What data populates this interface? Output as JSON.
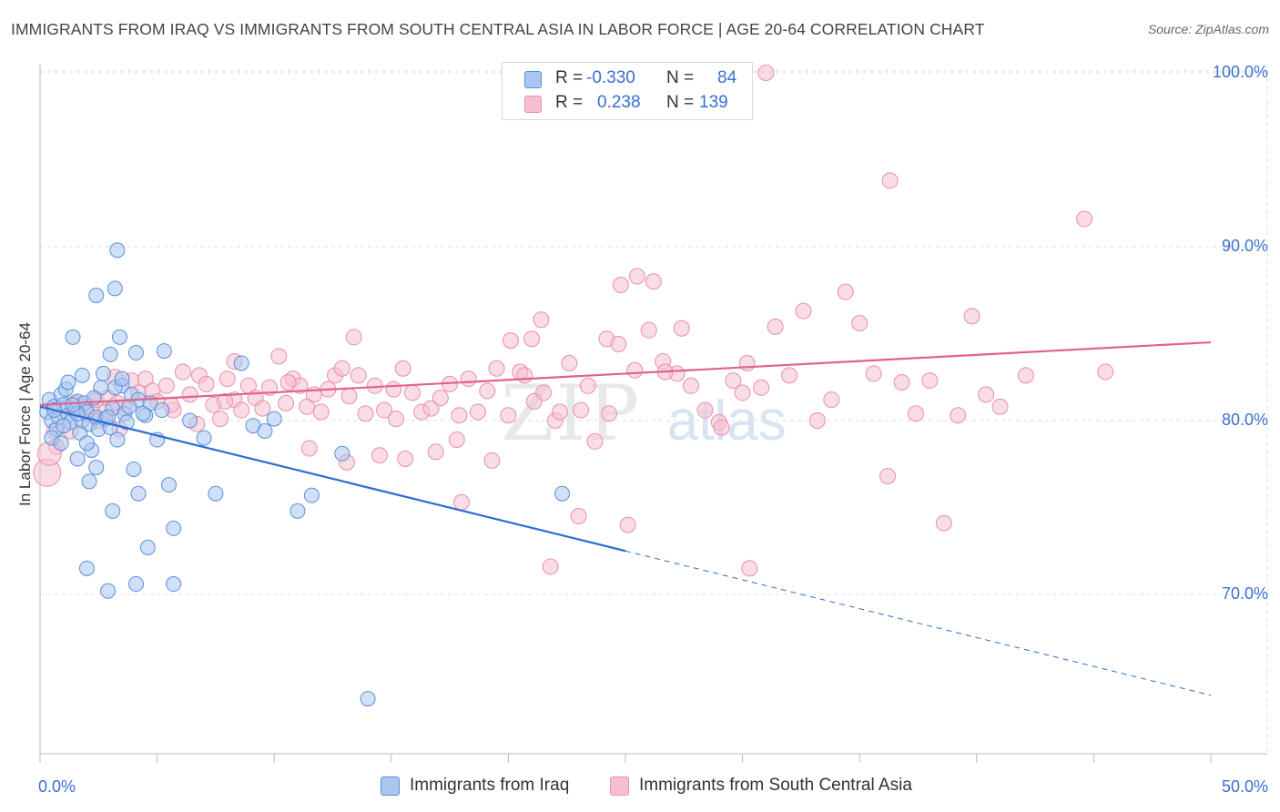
{
  "header": {
    "title": "IMMIGRANTS FROM IRAQ VS IMMIGRANTS FROM SOUTH CENTRAL ASIA IN LABOR FORCE | AGE 20-64 CORRELATION CHART",
    "source": "Source: ZipAtlas.com"
  },
  "watermark": {
    "zip": "ZIP",
    "atlas": "atlas"
  },
  "legend": {
    "r_label": "R =",
    "n_label": "N =",
    "rows": [
      {
        "r": "-0.330",
        "n": "84"
      },
      {
        "r": "0.238",
        "n": "139"
      }
    ]
  },
  "colors": {
    "blue_fill": "#a9c6ef",
    "blue_stroke": "#5b8fda",
    "blue_line": "#2c6fd0",
    "pink_fill": "#f6bfd0",
    "pink_stroke": "#e98fab",
    "pink_line": "#e0628a",
    "tick_label": "#3a6fd0",
    "grid": "#dddddd"
  },
  "chart_data": {
    "type": "scatter",
    "title": "IMMIGRANTS FROM IRAQ VS IMMIGRANTS FROM SOUTH CENTRAL ASIA IN LABOR FORCE | AGE 20-64 CORRELATION CHART",
    "xlabel": "",
    "ylabel": "In Labor Force | Age 20-64",
    "xlim": [
      0,
      50
    ],
    "ylim": [
      61,
      102
    ],
    "x_tick_labels": [
      "0.0%",
      "50.0%"
    ],
    "y_ticks": [
      70,
      80,
      90,
      100
    ],
    "y_tick_labels": [
      "70.0%",
      "80.0%",
      "90.0%",
      "100.0%"
    ],
    "grid": true,
    "legend_position": "top-center",
    "series": [
      {
        "name": "Immigrants from Iraq",
        "r": -0.33,
        "n": 84,
        "color": "#a9c6ef",
        "trend": {
          "x": [
            0,
            25
          ],
          "y": [
            80.8,
            72.5
          ],
          "dashed_to": [
            50,
            64.2
          ]
        },
        "points": [
          [
            0.3,
            80.5
          ],
          [
            0.4,
            81.2
          ],
          [
            0.5,
            80.0
          ],
          [
            0.6,
            80.8
          ],
          [
            0.7,
            79.5
          ],
          [
            0.8,
            80.2
          ],
          [
            0.9,
            81.5
          ],
          [
            1.0,
            80.9
          ],
          [
            1.1,
            81.8
          ],
          [
            1.2,
            80.3
          ],
          [
            0.5,
            79.0
          ],
          [
            0.9,
            78.7
          ],
          [
            1.3,
            79.9
          ],
          [
            1.5,
            80.6
          ],
          [
            1.6,
            81.1
          ],
          [
            1.7,
            79.3
          ],
          [
            1.8,
            80.0
          ],
          [
            1.9,
            81.0
          ],
          [
            2.0,
            80.5
          ],
          [
            2.1,
            79.8
          ],
          [
            2.2,
            78.3
          ],
          [
            2.4,
            80.2
          ],
          [
            2.5,
            79.5
          ],
          [
            2.6,
            81.9
          ],
          [
            2.8,
            80.1
          ],
          [
            3.0,
            79.6
          ],
          [
            3.1,
            80.7
          ],
          [
            3.3,
            78.9
          ],
          [
            3.5,
            82.0
          ],
          [
            3.6,
            80.4
          ],
          [
            1.2,
            82.2
          ],
          [
            1.4,
            84.8
          ],
          [
            1.8,
            82.6
          ],
          [
            2.3,
            81.3
          ],
          [
            2.7,
            82.7
          ],
          [
            3.0,
            83.8
          ],
          [
            3.2,
            81.9
          ],
          [
            3.5,
            82.4
          ],
          [
            3.9,
            81.5
          ],
          [
            4.2,
            81.2
          ],
          [
            1.6,
            77.8
          ],
          [
            2.1,
            76.5
          ],
          [
            2.4,
            77.3
          ],
          [
            3.1,
            74.8
          ],
          [
            4.0,
            77.2
          ],
          [
            4.2,
            75.8
          ],
          [
            4.6,
            72.7
          ],
          [
            5.0,
            78.9
          ],
          [
            5.5,
            76.3
          ],
          [
            5.7,
            73.8
          ],
          [
            2.0,
            71.5
          ],
          [
            2.9,
            70.2
          ],
          [
            4.1,
            70.6
          ],
          [
            5.7,
            70.6
          ],
          [
            7.0,
            79.0
          ],
          [
            7.5,
            75.8
          ],
          [
            8.6,
            83.3
          ],
          [
            9.1,
            79.7
          ],
          [
            9.6,
            79.4
          ],
          [
            10.0,
            80.1
          ],
          [
            2.4,
            87.2
          ],
          [
            3.2,
            87.6
          ],
          [
            3.4,
            84.8
          ],
          [
            3.3,
            89.8
          ],
          [
            4.1,
            83.9
          ],
          [
            4.7,
            81.0
          ],
          [
            3.8,
            80.8
          ],
          [
            4.5,
            80.3
          ],
          [
            5.2,
            80.6
          ],
          [
            6.4,
            80.0
          ],
          [
            11.0,
            74.8
          ],
          [
            11.6,
            75.7
          ],
          [
            12.9,
            78.1
          ],
          [
            14.0,
            64.0
          ],
          [
            22.3,
            75.8
          ],
          [
            1.0,
            79.7
          ],
          [
            1.6,
            80.4
          ],
          [
            2.9,
            80.2
          ],
          [
            3.7,
            79.9
          ],
          [
            5.3,
            84.0
          ],
          [
            0.6,
            80.6
          ],
          [
            1.4,
            80.9
          ],
          [
            2.0,
            78.7
          ],
          [
            4.4,
            80.4
          ]
        ]
      },
      {
        "name": "Immigrants from South Central Asia",
        "r": 0.238,
        "n": 139,
        "color": "#f6bfd0",
        "trend": {
          "x": [
            0,
            50
          ],
          "y": [
            80.9,
            84.5
          ]
        },
        "points": [
          [
            0.3,
            77.0
          ],
          [
            0.6,
            79.4
          ],
          [
            0.7,
            78.5
          ],
          [
            1.1,
            80.6
          ],
          [
            1.5,
            81.0
          ],
          [
            2.0,
            80.4
          ],
          [
            2.2,
            80.8
          ],
          [
            2.4,
            81.2
          ],
          [
            2.5,
            80.0
          ],
          [
            2.9,
            81.3
          ],
          [
            3.2,
            82.5
          ],
          [
            3.4,
            79.5
          ],
          [
            3.6,
            80.7
          ],
          [
            3.9,
            82.3
          ],
          [
            4.2,
            81.6
          ],
          [
            4.5,
            82.4
          ],
          [
            4.8,
            81.7
          ],
          [
            5.0,
            81.1
          ],
          [
            5.4,
            82.0
          ],
          [
            5.7,
            80.6
          ],
          [
            6.1,
            82.8
          ],
          [
            6.4,
            81.5
          ],
          [
            6.8,
            82.6
          ],
          [
            7.1,
            82.1
          ],
          [
            7.4,
            80.9
          ],
          [
            7.7,
            80.1
          ],
          [
            8.0,
            82.4
          ],
          [
            8.3,
            81.2
          ],
          [
            8.6,
            80.6
          ],
          [
            8.9,
            82.0
          ],
          [
            9.2,
            81.3
          ],
          [
            9.5,
            80.7
          ],
          [
            9.8,
            81.9
          ],
          [
            10.2,
            83.7
          ],
          [
            10.5,
            81.0
          ],
          [
            10.8,
            82.4
          ],
          [
            11.1,
            82.0
          ],
          [
            11.4,
            80.8
          ],
          [
            11.7,
            81.5
          ],
          [
            12.0,
            80.5
          ],
          [
            12.3,
            81.8
          ],
          [
            12.6,
            82.6
          ],
          [
            12.9,
            83.0
          ],
          [
            13.2,
            81.4
          ],
          [
            13.6,
            82.6
          ],
          [
            13.9,
            80.4
          ],
          [
            14.3,
            82.0
          ],
          [
            14.7,
            80.6
          ],
          [
            15.1,
            81.8
          ],
          [
            15.5,
            83.0
          ],
          [
            15.9,
            81.6
          ],
          [
            16.3,
            80.5
          ],
          [
            16.7,
            80.7
          ],
          [
            17.1,
            81.3
          ],
          [
            17.5,
            82.1
          ],
          [
            17.9,
            80.3
          ],
          [
            18.3,
            82.4
          ],
          [
            18.7,
            80.5
          ],
          [
            19.1,
            81.7
          ],
          [
            19.5,
            83.0
          ],
          [
            20.0,
            80.3
          ],
          [
            20.5,
            82.8
          ],
          [
            21.0,
            84.7
          ],
          [
            21.5,
            81.6
          ],
          [
            22.0,
            80.0
          ],
          [
            22.6,
            83.3
          ],
          [
            23.1,
            80.6
          ],
          [
            23.7,
            78.8
          ],
          [
            24.2,
            84.7
          ],
          [
            24.8,
            87.8
          ],
          [
            25.4,
            82.9
          ],
          [
            26.0,
            85.2
          ],
          [
            26.6,
            83.4
          ],
          [
            27.2,
            82.7
          ],
          [
            27.8,
            82.0
          ],
          [
            28.4,
            80.6
          ],
          [
            29.0,
            79.9
          ],
          [
            29.6,
            82.3
          ],
          [
            30.2,
            83.3
          ],
          [
            30.8,
            81.9
          ],
          [
            31.4,
            85.4
          ],
          [
            32.0,
            82.6
          ],
          [
            32.6,
            86.3
          ],
          [
            33.2,
            80.0
          ],
          [
            33.8,
            81.2
          ],
          [
            34.4,
            87.4
          ],
          [
            35.0,
            85.6
          ],
          [
            35.6,
            82.7
          ],
          [
            36.2,
            76.8
          ],
          [
            36.8,
            82.2
          ],
          [
            37.4,
            80.4
          ],
          [
            38.0,
            82.3
          ],
          [
            38.6,
            74.1
          ],
          [
            39.2,
            80.3
          ],
          [
            39.8,
            86.0
          ],
          [
            40.4,
            81.5
          ],
          [
            41.0,
            80.8
          ],
          [
            42.1,
            82.6
          ],
          [
            44.6,
            91.6
          ],
          [
            45.5,
            82.8
          ],
          [
            20.7,
            82.6
          ],
          [
            21.1,
            81.1
          ],
          [
            21.4,
            85.8
          ],
          [
            22.2,
            80.5
          ],
          [
            23.4,
            82.0
          ],
          [
            24.7,
            84.4
          ],
          [
            25.5,
            88.3
          ],
          [
            26.2,
            88.0
          ],
          [
            26.7,
            82.8
          ],
          [
            27.4,
            85.3
          ],
          [
            11.5,
            78.4
          ],
          [
            13.1,
            77.6
          ],
          [
            14.5,
            78.0
          ],
          [
            15.6,
            77.8
          ],
          [
            16.9,
            78.2
          ],
          [
            17.8,
            78.9
          ],
          [
            19.3,
            77.7
          ],
          [
            23.0,
            74.5
          ],
          [
            25.1,
            74.0
          ],
          [
            30.3,
            71.5
          ],
          [
            18.0,
            75.3
          ],
          [
            21.8,
            71.6
          ],
          [
            36.3,
            93.8
          ],
          [
            29.1,
            79.6
          ],
          [
            13.4,
            84.8
          ],
          [
            8.3,
            83.4
          ],
          [
            5.6,
            80.9
          ],
          [
            6.7,
            79.8
          ],
          [
            10.6,
            82.2
          ],
          [
            7.9,
            81.1
          ],
          [
            31.0,
            100.0
          ],
          [
            0.4,
            78.1
          ],
          [
            1.3,
            79.4
          ],
          [
            2.8,
            80.5
          ],
          [
            3.3,
            81.0
          ],
          [
            15.2,
            80.1
          ],
          [
            20.1,
            84.6
          ],
          [
            24.3,
            80.4
          ],
          [
            30.0,
            81.6
          ]
        ]
      }
    ]
  },
  "bottom_legend": [
    {
      "label": "Immigrants from Iraq"
    },
    {
      "label": "Immigrants from South Central Asia"
    }
  ]
}
